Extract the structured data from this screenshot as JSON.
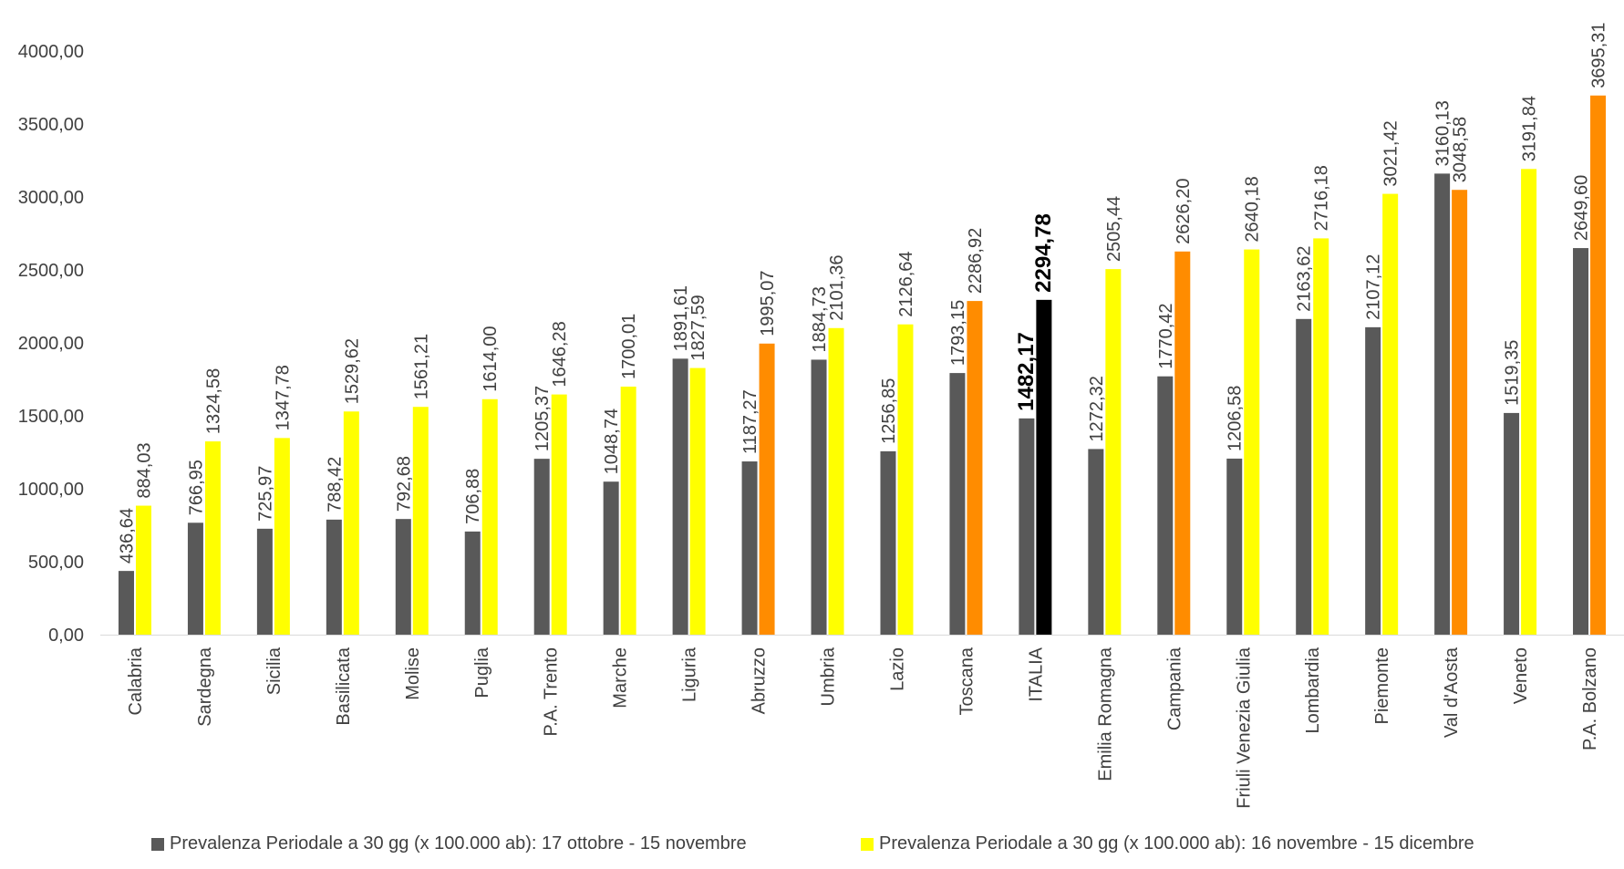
{
  "chart_data": {
    "type": "bar",
    "title": "",
    "xlabel": "",
    "ylabel": "",
    "ylim": [
      0,
      4000
    ],
    "yticks": [
      "0,00",
      "500,00",
      "1000,00",
      "1500,00",
      "2000,00",
      "2500,00",
      "3000,00",
      "3500,00",
      "4000,00"
    ],
    "grid": false,
    "legend_position": "bottom",
    "categories": [
      "Calabria",
      "Sardegna",
      "Sicilia",
      "Basilicata",
      "Molise",
      "Puglia",
      "P.A. Trento",
      "Marche",
      "Liguria",
      "Abruzzo",
      "Umbria",
      "Lazio",
      "Toscana",
      "ITALIA",
      "Emilia Romagna",
      "Campania",
      "Friuli Venezia Giulia",
      "Lombardia",
      "Piemonte",
      "Val d'Aosta",
      "Veneto",
      "P.A. Bolzano"
    ],
    "series": [
      {
        "name": "Prevalenza Periodale a 30 gg (x 100.000 ab): 17 ottobre - 15 novembre",
        "color": "#595959",
        "values": [
          436.64,
          766.95,
          725.97,
          788.42,
          792.68,
          706.88,
          1205.37,
          1048.74,
          1891.61,
          1187.27,
          1884.73,
          1256.85,
          1793.15,
          1482.17,
          1272.32,
          1770.42,
          1206.58,
          2163.62,
          2107.12,
          3160.13,
          1519.35,
          2649.6
        ],
        "labels": [
          "436,64",
          "766,95",
          "725,97",
          "788,42",
          "792,68",
          "706,88",
          "1205,37",
          "1048,74",
          "1891,61",
          "1187,27",
          "1884,73",
          "1256,85",
          "1793,15",
          "1482,17",
          "1272,32",
          "1770,42",
          "1206,58",
          "2163,62",
          "2107,12",
          "3160,13",
          "1519,35",
          "2649,60"
        ]
      },
      {
        "name": "Prevalenza Periodale a 30 gg (x 100.000 ab): 16 novembre - 15 dicembre",
        "color": "#FFFF00",
        "values": [
          884.03,
          1324.58,
          1347.78,
          1529.62,
          1561.21,
          1614.0,
          1646.28,
          1700.01,
          1827.59,
          1995.07,
          2101.36,
          2126.64,
          2286.92,
          2294.78,
          2505.44,
          2626.2,
          2640.18,
          2716.18,
          3021.42,
          3048.58,
          3191.84,
          3695.31
        ],
        "labels": [
          "884,03",
          "1324,58",
          "1347,78",
          "1529,62",
          "1561,21",
          "1614,00",
          "1646,28",
          "1700,01",
          "1827,59",
          "1995,07",
          "2101,36",
          "2126,64",
          "2286,92",
          "2294,78",
          "2505,44",
          "2626,20",
          "2640,18",
          "2716,18",
          "3021,42",
          "3048,58",
          "3191,84",
          "3695,31"
        ],
        "point_colors": [
          "#FFFF00",
          "#FFFF00",
          "#FFFF00",
          "#FFFF00",
          "#FFFF00",
          "#FFFF00",
          "#FFFF00",
          "#FFFF00",
          "#FFFF00",
          "#FF8C00",
          "#FFFF00",
          "#FFFF00",
          "#FF8C00",
          "#000000",
          "#FFFF00",
          "#FF8C00",
          "#FFFF00",
          "#FFFF00",
          "#FFFF00",
          "#FF8C00",
          "#FFFF00",
          "#FF8C00"
        ]
      }
    ],
    "highlight_category": "ITALIA"
  },
  "legend": {
    "item1": "Prevalenza Periodale a 30 gg (x 100.000 ab): 17 ottobre - 15 novembre",
    "item2": "Prevalenza Periodale a 30 gg (x 100.000 ab): 16 novembre - 15 dicembre"
  }
}
